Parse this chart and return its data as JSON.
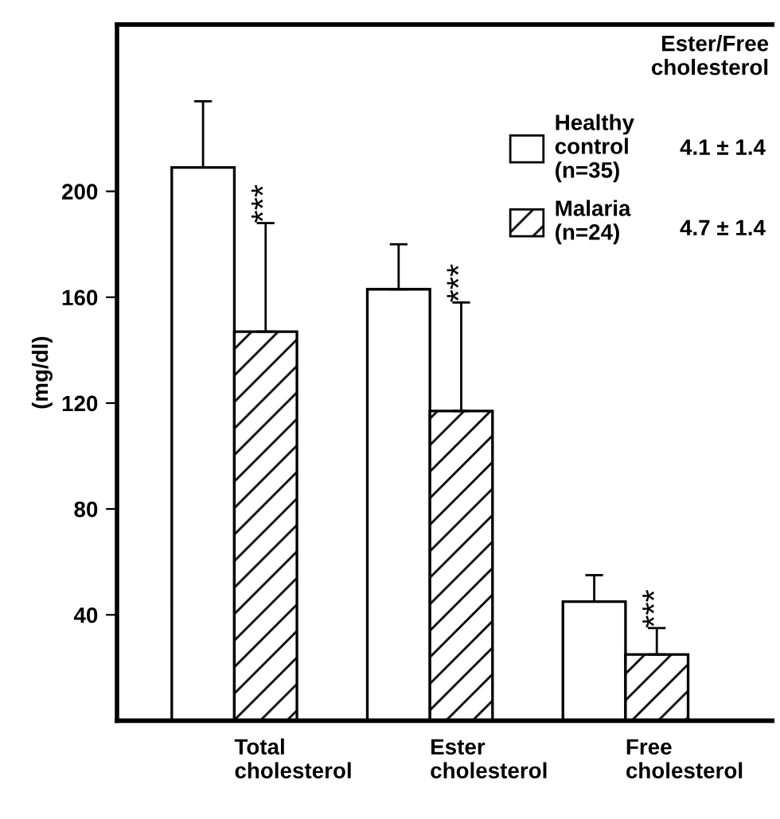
{
  "chart_data": {
    "type": "bar",
    "ylabel": "(mg/dl)",
    "categories": [
      "Total\ncholesterol",
      "Ester\ncholesterol",
      "Free\ncholesterol"
    ],
    "series": [
      {
        "name": "Healthy\ncontrol\n(n=35)",
        "color": "#ffffff",
        "values": [
          209,
          163,
          45
        ],
        "errors": [
          25,
          17,
          10
        ]
      },
      {
        "name": "Malaria\n(n=24)",
        "color": "#000000",
        "values": [
          147,
          117,
          25
        ],
        "errors": [
          41,
          41,
          10
        ]
      }
    ],
    "ylim": [
      0,
      263
    ],
    "yticks": [
      40,
      80,
      120,
      160,
      200
    ],
    "grid": false,
    "legend": "top right",
    "annotations": [
      "***",
      "***",
      "***",
      "Ester/Free\ncholesterol",
      "4.1 ± 1.4",
      "4.7 ± 1.4"
    ]
  }
}
